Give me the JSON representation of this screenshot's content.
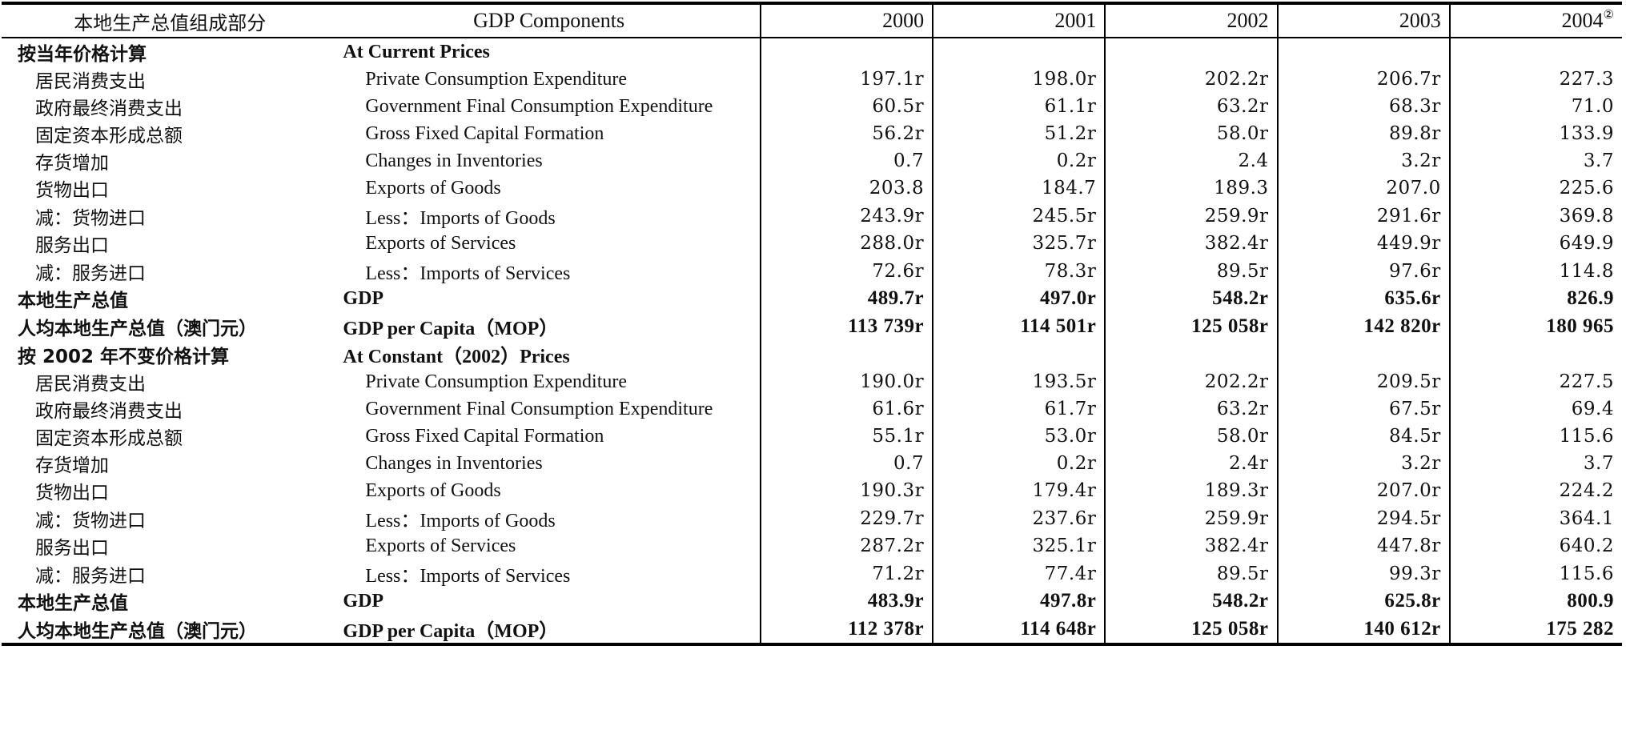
{
  "headers": {
    "zh": "本地生产总值组成部分",
    "en": "GDP Components",
    "years": [
      "2000",
      "2001",
      "2002",
      "2003",
      "2004"
    ],
    "last_note": "②"
  },
  "rows": [
    {
      "zh": "按当年价格计算",
      "en": "At Current Prices",
      "values": [
        "",
        "",
        "",
        "",
        ""
      ],
      "type": "section"
    },
    {
      "zh": "居民消费支出",
      "en": "Private Consumption Expenditure",
      "values": [
        "197.1r",
        "198.0r",
        "202.2r",
        "206.7r",
        "227.3"
      ],
      "type": "item"
    },
    {
      "zh": "政府最终消费支出",
      "en": "Government Final Consumption Expenditure",
      "values": [
        "60.5r",
        "61.1r",
        "63.2r",
        "68.3r",
        "71.0"
      ],
      "type": "item"
    },
    {
      "zh": "固定资本形成总额",
      "en": "Gross Fixed Capital Formation",
      "values": [
        "56.2r",
        "51.2r",
        "58.0r",
        "89.8r",
        "133.9"
      ],
      "type": "item"
    },
    {
      "zh": "存货增加",
      "en": "Changes in Inventories",
      "values": [
        "0.7",
        "0.2r",
        "2.4",
        "3.2r",
        "3.7"
      ],
      "type": "item"
    },
    {
      "zh": "货物出口",
      "en": "Exports of Goods",
      "values": [
        "203.8",
        "184.7",
        "189.3",
        "207.0",
        "225.6"
      ],
      "type": "item"
    },
    {
      "zh": "减：货物进口",
      "en": "Less：Imports of Goods",
      "values": [
        "243.9r",
        "245.5r",
        "259.9r",
        "291.6r",
        "369.8"
      ],
      "type": "item"
    },
    {
      "zh": "服务出口",
      "en": "Exports of Services",
      "values": [
        "288.0r",
        "325.7r",
        "382.4r",
        "449.9r",
        "649.9"
      ],
      "type": "item"
    },
    {
      "zh": "减：服务进口",
      "en": "Less：Imports of Services",
      "values": [
        "72.6r",
        "78.3r",
        "89.5r",
        "97.6r",
        "114.8"
      ],
      "type": "item"
    },
    {
      "zh": "本地生产总值",
      "en": "GDP",
      "values": [
        "489.7r",
        "497.0r",
        "548.2r",
        "635.6r",
        "826.9"
      ],
      "type": "total"
    },
    {
      "zh": "人均本地生产总值（澳门元）",
      "en": "GDP per Capita（MOP）",
      "values": [
        "113 739r",
        "114 501r",
        "125 058r",
        "142 820r",
        "180 965"
      ],
      "type": "total"
    },
    {
      "zh": "按 2002 年不变价格计算",
      "en": "At Constant（2002）Prices",
      "values": [
        "",
        "",
        "",
        "",
        ""
      ],
      "type": "section"
    },
    {
      "zh": "居民消费支出",
      "en": "Private Consumption Expenditure",
      "values": [
        "190.0r",
        "193.5r",
        "202.2r",
        "209.5r",
        "227.5"
      ],
      "type": "item"
    },
    {
      "zh": "政府最终消费支出",
      "en": "Government Final Consumption Expenditure",
      "values": [
        "61.6r",
        "61.7r",
        "63.2r",
        "67.5r",
        "69.4"
      ],
      "type": "item"
    },
    {
      "zh": "固定资本形成总额",
      "en": "Gross Fixed Capital Formation",
      "values": [
        "55.1r",
        "53.0r",
        "58.0r",
        "84.5r",
        "115.6"
      ],
      "type": "item"
    },
    {
      "zh": "存货增加",
      "en": "Changes in Inventories",
      "values": [
        "0.7",
        "0.2r",
        "2.4r",
        "3.2r",
        "3.7"
      ],
      "type": "item"
    },
    {
      "zh": "货物出口",
      "en": "Exports of Goods",
      "values": [
        "190.3r",
        "179.4r",
        "189.3r",
        "207.0r",
        "224.2"
      ],
      "type": "item"
    },
    {
      "zh": "减：货物进口",
      "en": "Less：Imports of Goods",
      "values": [
        "229.7r",
        "237.6r",
        "259.9r",
        "294.5r",
        "364.1"
      ],
      "type": "item"
    },
    {
      "zh": "服务出口",
      "en": "Exports of Services",
      "values": [
        "287.2r",
        "325.1r",
        "382.4r",
        "447.8r",
        "640.2"
      ],
      "type": "item"
    },
    {
      "zh": "减：服务进口",
      "en": "Less：Imports of Services",
      "values": [
        "71.2r",
        "77.4r",
        "89.5r",
        "99.3r",
        "115.6"
      ],
      "type": "item"
    },
    {
      "zh": "本地生产总值",
      "en": "GDP",
      "values": [
        "483.9r",
        "497.8r",
        "548.2r",
        "625.8r",
        "800.9"
      ],
      "type": "total"
    },
    {
      "zh": "人均本地生产总值（澳门元）",
      "en": "GDP per Capita（MOP）",
      "values": [
        "112 378r",
        "114 648r",
        "125 058r",
        "140 612r",
        "175 282"
      ],
      "type": "total"
    }
  ]
}
